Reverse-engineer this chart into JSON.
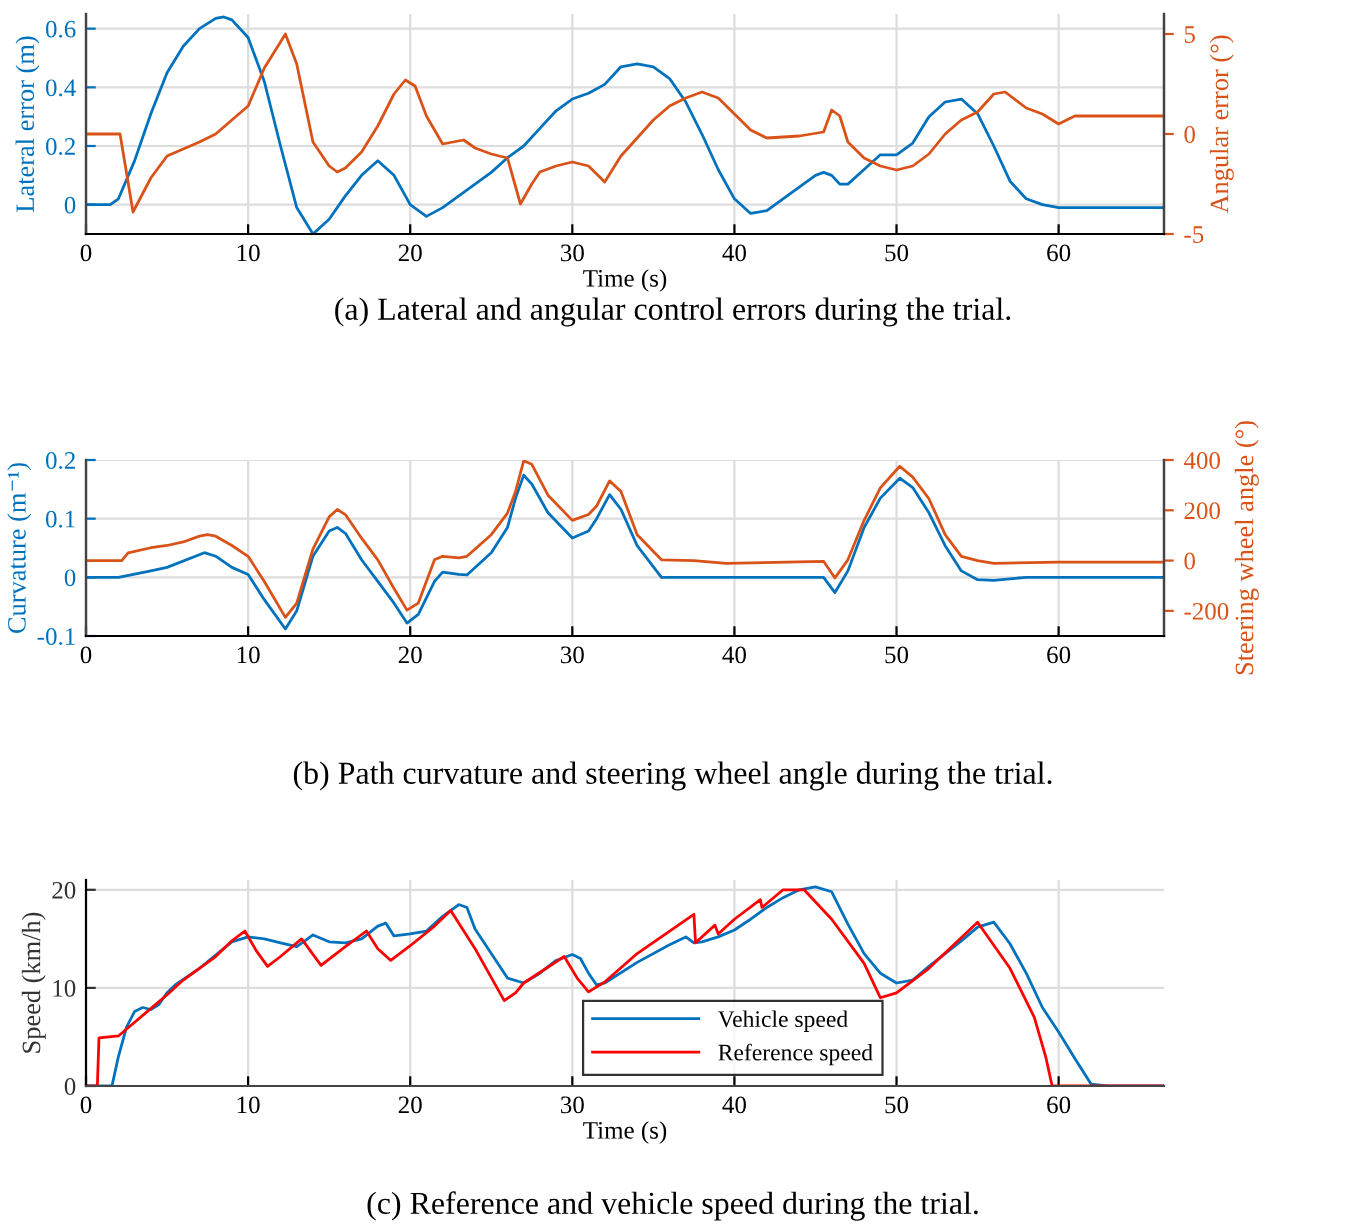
{
  "chart_data": [
    {
      "type": "line",
      "xlabel": "Time (s)",
      "ylabel": "Lateral error (m)",
      "y2label": "Angular error (°)",
      "xlim": [
        0,
        66.5
      ],
      "xticks": [
        0,
        10,
        20,
        30,
        40,
        50,
        60
      ],
      "ylim": [
        -0.1,
        0.65
      ],
      "yticks": [
        0,
        0.2,
        0.4,
        0.6
      ],
      "y2lim": [
        -5,
        6
      ],
      "y2ticks": [
        -5,
        0,
        5
      ],
      "grid": true,
      "annotations": [
        "(a) Lateral and angular control errors during the trial."
      ],
      "series": [
        {
          "color": "#0072bd",
          "x": [
            0,
            1.5,
            2,
            3,
            4,
            5,
            6,
            7,
            8,
            8.5,
            9,
            10,
            11,
            12,
            13,
            14,
            15,
            16,
            17,
            18,
            19,
            20,
            21,
            22,
            23,
            24,
            25,
            26,
            27,
            28,
            29,
            30,
            31,
            32,
            33,
            34,
            35,
            36,
            37,
            38,
            39,
            40,
            41,
            42,
            43,
            44,
            45,
            45.5,
            46,
            46.5,
            47,
            48,
            49,
            50,
            51,
            52,
            53,
            54,
            55,
            56,
            57,
            58,
            59,
            60,
            62,
            66.5
          ],
          "values": [
            0,
            0,
            0.02,
            0.15,
            0.31,
            0.45,
            0.54,
            0.6,
            0.635,
            0.64,
            0.63,
            0.57,
            0.42,
            0.2,
            -0.01,
            -0.1,
            -0.05,
            0.03,
            0.1,
            0.15,
            0.1,
            0.0,
            -0.04,
            -0.01,
            0.03,
            0.07,
            0.11,
            0.16,
            0.2,
            0.26,
            0.32,
            0.36,
            0.38,
            0.41,
            0.47,
            0.48,
            0.47,
            0.43,
            0.35,
            0.24,
            0.12,
            0.02,
            -0.03,
            -0.02,
            0.02,
            0.06,
            0.1,
            0.11,
            0.1,
            0.07,
            0.07,
            0.12,
            0.17,
            0.17,
            0.21,
            0.3,
            0.35,
            0.36,
            0.31,
            0.2,
            0.08,
            0.02,
            0,
            -0.01,
            -0.01,
            -0.01
          ]
        },
        {
          "color": "#d95319",
          "axis": "y2",
          "x": [
            0,
            2.1,
            2.9,
            4,
            5,
            7,
            8,
            9,
            10,
            11,
            12,
            12.3,
            13,
            14,
            15,
            15.5,
            16,
            17,
            18,
            19,
            19.7,
            20.3,
            21,
            22,
            23.3,
            24,
            25,
            26,
            26.8,
            27.5,
            28,
            29,
            30,
            31,
            32,
            33,
            34,
            35,
            36,
            37,
            38,
            39,
            40,
            41,
            42,
            44,
            45.5,
            46,
            46.5,
            47,
            48,
            49,
            50,
            51,
            52,
            53,
            54,
            55,
            56,
            56.7,
            58,
            59,
            60,
            61,
            62,
            66.5
          ],
          "values": [
            0,
            0,
            -3.9,
            -2.2,
            -1.1,
            -0.4,
            0,
            0.7,
            1.4,
            3.3,
            4.6,
            5.0,
            3.5,
            -0.4,
            -1.6,
            -1.9,
            -1.7,
            -0.9,
            0.4,
            2.0,
            2.7,
            2.4,
            0.9,
            -0.5,
            -0.3,
            -0.7,
            -1.0,
            -1.2,
            -3.5,
            -2.5,
            -1.9,
            -1.6,
            -1.4,
            -1.6,
            -2.4,
            -1.1,
            -0.2,
            0.7,
            1.4,
            1.8,
            2.1,
            1.8,
            1.0,
            0.2,
            -0.2,
            -0.1,
            0.1,
            1.2,
            0.9,
            -0.4,
            -1.2,
            -1.6,
            -1.8,
            -1.6,
            -1.0,
            0,
            0.7,
            1.1,
            2.0,
            2.1,
            1.3,
            1.0,
            0.5,
            0.9,
            0.9,
            0.9
          ]
        }
      ]
    },
    {
      "type": "line",
      "ylabel": "Curvature (m⁻¹)",
      "y2label": "Steering wheel angle (°)",
      "xlim": [
        0,
        66.5
      ],
      "xticks": [
        0,
        10,
        20,
        30,
        40,
        50,
        60
      ],
      "ylim": [
        -0.1,
        0.2
      ],
      "yticks": [
        -0.1,
        0,
        0.1,
        0.2
      ],
      "y2lim": [
        -300,
        400
      ],
      "y2ticks": [
        -200,
        0,
        200,
        400
      ],
      "grid": true,
      "annotations": [
        "(b) Path curvature and steering wheel angle during the trial."
      ],
      "series": [
        {
          "color": "#0072bd",
          "x": [
            0,
            2,
            4,
            5,
            7.3,
            8,
            9,
            10,
            11,
            12.3,
            13,
            14,
            15,
            15.5,
            16,
            17,
            18,
            19,
            19.8,
            20.5,
            21.5,
            22,
            23,
            23.5,
            25,
            26,
            26.5,
            27,
            27.5,
            28.5,
            30,
            31,
            31.5,
            32.3,
            33,
            34,
            35.5,
            36,
            45.5,
            46.2,
            47,
            48,
            49,
            50.2,
            51,
            52,
            53,
            54,
            55,
            56,
            58,
            66.5
          ],
          "values": [
            0,
            0,
            0.011,
            0.017,
            0.042,
            0.036,
            0.017,
            0.005,
            -0.038,
            -0.088,
            -0.057,
            0.036,
            0.079,
            0.085,
            0.075,
            0.03,
            -0.007,
            -0.044,
            -0.078,
            -0.063,
            -0.007,
            0.009,
            0.005,
            0.004,
            0.042,
            0.085,
            0.135,
            0.174,
            0.159,
            0.11,
            0.067,
            0.079,
            0.1,
            0.141,
            0.116,
            0.054,
            0,
            0,
            0,
            -0.026,
            0.011,
            0.085,
            0.135,
            0.169,
            0.153,
            0.11,
            0.054,
            0.011,
            -0.004,
            -0.005,
            0,
            0
          ]
        },
        {
          "color": "#d95319",
          "axis": "y2",
          "x": [
            0,
            2.2,
            2.6,
            4,
            5,
            6,
            7,
            7.5,
            8,
            9,
            10,
            11,
            12.3,
            13,
            14,
            15,
            15.5,
            16,
            17,
            18,
            19,
            19.8,
            20.5,
            21.5,
            22,
            23,
            23.5,
            25,
            26,
            26.5,
            27,
            27.5,
            28.5,
            30,
            31,
            31.5,
            32.3,
            33,
            34,
            35.5,
            37.5,
            39.5,
            45.5,
            46.2,
            47,
            48,
            49,
            50.2,
            51,
            52,
            53,
            54,
            55,
            56,
            60,
            66.5
          ],
          "values": [
            0,
            0,
            31,
            51,
            60,
            74,
            97,
            103,
            97,
            60,
            17,
            -83,
            -226,
            -169,
            46,
            174,
            203,
            183,
            89,
            3,
            -111,
            -197,
            -169,
            3,
            17,
            11,
            17,
            103,
            189,
            275,
            397,
            383,
            260,
            160,
            183,
            217,
            317,
            275,
            103,
            3,
            0,
            -11,
            -3,
            -69,
            3,
            160,
            289,
            375,
            332,
            246,
            103,
            17,
            0,
            -11,
            -6,
            -6
          ]
        }
      ]
    },
    {
      "type": "line",
      "xlabel": "Time (s)",
      "ylabel": "Speed (km/h)",
      "xlim": [
        0,
        66.5
      ],
      "xticks": [
        0,
        10,
        20,
        30,
        40,
        50,
        60
      ],
      "ylim": [
        0,
        21
      ],
      "yticks": [
        0,
        10,
        20
      ],
      "grid": true,
      "legend": "bottom",
      "annotations": [
        "(c) Reference and vehicle speed during the trial."
      ],
      "series": [
        {
          "name": "Vehicle speed",
          "color": "#0072bd",
          "x": [
            0,
            1.6,
            2,
            2.5,
            3,
            3.5,
            4,
            4.5,
            5,
            5.5,
            7,
            9,
            10,
            11,
            12,
            13,
            13.5,
            14,
            15,
            16,
            17,
            18,
            18.5,
            19,
            20,
            21,
            22,
            23,
            23.5,
            24,
            25,
            26,
            27,
            28,
            29,
            30,
            30.5,
            31,
            31.5,
            32,
            34,
            36,
            37,
            37.5,
            38,
            39,
            40,
            41,
            42,
            43,
            44,
            45,
            46,
            47,
            48,
            49,
            50,
            51,
            52,
            54,
            55,
            56,
            57,
            58,
            59,
            60,
            61,
            62,
            63,
            66.5
          ],
          "values": [
            0,
            0,
            3,
            6,
            7.6,
            8,
            7.8,
            8.3,
            9.5,
            10.3,
            12,
            14.7,
            15.2,
            15,
            14.6,
            14.2,
            14.8,
            15.4,
            14.7,
            14.6,
            15,
            16.3,
            16.6,
            15.3,
            15.5,
            15.8,
            17.3,
            18.5,
            18.2,
            16,
            13.5,
            11,
            10.5,
            11.5,
            12.8,
            13.4,
            13,
            11.5,
            10.3,
            10.5,
            12.6,
            14.4,
            15.2,
            14.6,
            14.7,
            15.2,
            15.9,
            17,
            18.2,
            19.2,
            20,
            20.3,
            19.8,
            16.5,
            13.5,
            11.5,
            10.5,
            10.8,
            12.2,
            14.8,
            16.2,
            16.7,
            14.5,
            11.5,
            8,
            5.5,
            2.8,
            0.2,
            0,
            0
          ]
        },
        {
          "name": "Reference speed",
          "color": "#ff0000",
          "x": [
            0,
            0.7,
            0.8,
            2,
            3,
            5,
            6,
            8,
            9,
            9.8,
            10.5,
            11.2,
            12,
            13.3,
            14.5,
            16,
            17.3,
            18,
            18.8,
            20,
            21.5,
            22.5,
            24,
            25.8,
            26.5,
            27,
            29.5,
            30.3,
            31,
            32,
            34,
            37.5,
            37.6,
            38.8,
            39,
            40,
            41.6,
            41.7,
            43,
            44.3,
            46,
            48,
            49,
            50,
            52,
            55,
            57,
            58.5,
            59.2,
            59.6,
            66.5
          ],
          "values": [
            0,
            0,
            4.9,
            5.1,
            6.5,
            9.3,
            10.8,
            13.2,
            14.8,
            15.8,
            13.8,
            12.2,
            13.2,
            15,
            12.3,
            14.2,
            15.8,
            14,
            12.8,
            14.3,
            16.3,
            17.9,
            14,
            8.7,
            9.5,
            10.5,
            13.2,
            11,
            9.6,
            10.6,
            13.5,
            17.5,
            14.6,
            16.4,
            15.5,
            17,
            19,
            18.2,
            20,
            20,
            17,
            12.5,
            9,
            9.5,
            12,
            16.7,
            12,
            7,
            3,
            0,
            0
          ]
        }
      ]
    }
  ]
}
